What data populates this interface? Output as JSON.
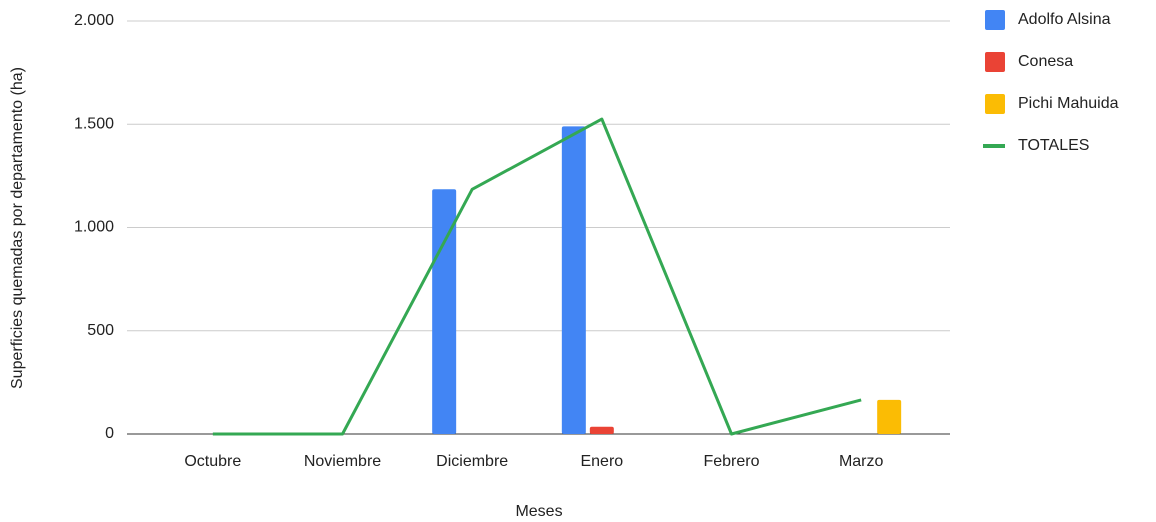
{
  "chart_data": {
    "type": "bar",
    "x_label": "Meses",
    "y_label": "Superficies quemadas por departamento (ha)",
    "categories": [
      "Octubre",
      "Noviembre",
      "Diciembre",
      "Enero",
      "Febrero",
      "Marzo"
    ],
    "series": [
      {
        "name": "Adolfo Alsina",
        "color": "#4285f4",
        "type": "bar",
        "values": [
          0,
          0,
          1185,
          1490,
          0,
          0
        ]
      },
      {
        "name": "Conesa",
        "color": "#ea4335",
        "type": "bar",
        "values": [
          0,
          0,
          0,
          35,
          0,
          0
        ]
      },
      {
        "name": "Pichi Mahuida",
        "color": "#fbbc04",
        "type": "bar",
        "values": [
          0,
          0,
          0,
          0,
          0,
          165
        ]
      },
      {
        "name": "TOTALES",
        "color": "#34a853",
        "type": "line",
        "values": [
          0,
          0,
          1185,
          1525,
          0,
          165
        ]
      }
    ],
    "ylim": [
      0,
      2000
    ],
    "yticks": [
      0,
      500,
      {
        "value": 1000,
        "label": "1.000"
      },
      {
        "value": 1500,
        "label": "1.500"
      },
      {
        "value": 2000,
        "label": "2.000"
      }
    ],
    "grid": true,
    "legend": "right"
  }
}
